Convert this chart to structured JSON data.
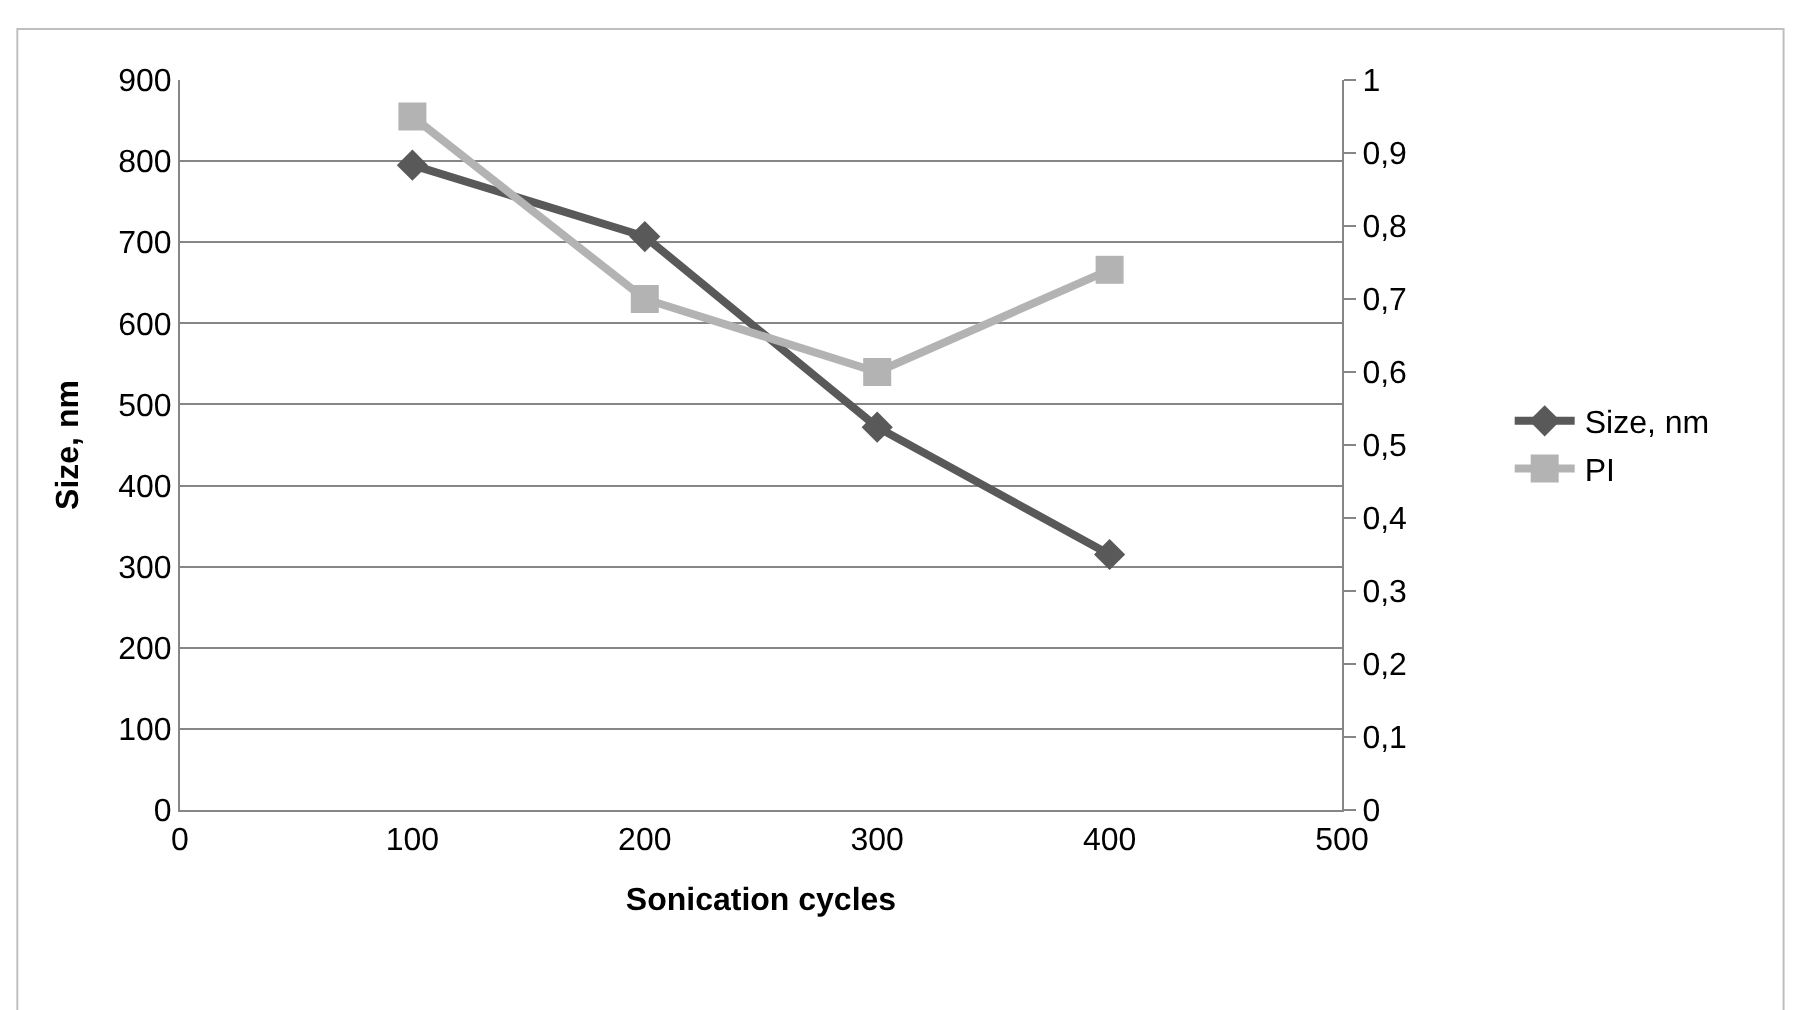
{
  "chart_data": {
    "type": "line",
    "xlabel": "Sonication cycles",
    "ylabel": "Size, nm",
    "x": [
      100,
      200,
      300,
      400
    ],
    "series": [
      {
        "name": "Size, nm",
        "color": "#595959",
        "marker": "diamond",
        "values": [
          795,
          707,
          472,
          315
        ]
      },
      {
        "name": "PI",
        "color": "#b3b3b3",
        "marker": "square",
        "axis": "y2",
        "values": [
          0.95,
          0.7,
          0.6,
          0.74
        ]
      }
    ],
    "xlim": [
      0,
      500
    ],
    "xticks": [
      0,
      100,
      200,
      300,
      400,
      500
    ],
    "ylim": [
      0,
      900
    ],
    "yticks": [
      0,
      100,
      200,
      300,
      400,
      500,
      600,
      700,
      800,
      900
    ],
    "y2lim": [
      0,
      1
    ],
    "y2ticks": [
      {
        "value": 0,
        "label": "0"
      },
      {
        "value": 0.1,
        "label": "0,1"
      },
      {
        "value": 0.2,
        "label": "0,2"
      },
      {
        "value": 0.3,
        "label": "0,3"
      },
      {
        "value": 0.4,
        "label": "0,4"
      },
      {
        "value": 0.5,
        "label": "0,5"
      },
      {
        "value": 0.6,
        "label": "0,6"
      },
      {
        "value": 0.7,
        "label": "0,7"
      },
      {
        "value": 0.8,
        "label": "0,8"
      },
      {
        "value": 0.9,
        "label": "0,9"
      },
      {
        "value": 1,
        "label": "1"
      }
    ],
    "grid": "y",
    "legend": "right",
    "line_style": "solid"
  }
}
